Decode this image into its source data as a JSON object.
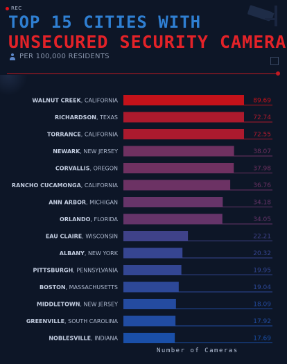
{
  "header": {
    "rec_label": "REC",
    "title_line1": "TOP 15 CITIES WITH",
    "title_line2": "UNSECURED SECURITY CAMERAS",
    "subtitle": "PER 100,000 RESIDENTS"
  },
  "colors": {
    "background": "#0d1627",
    "title_blue": "#2f7fd2",
    "title_red": "#e32228",
    "bar_high": "#c4121a",
    "bar_low": "#1a4fa8"
  },
  "icons": {
    "rec": "rec-dot-icon",
    "camera": "security-camera-icon",
    "person": "person-icon",
    "expand": "expand-icon"
  },
  "chart_data": {
    "type": "bar",
    "orientation": "horizontal",
    "title": "TOP 15 CITIES WITH UNSECURED SECURITY CAMERAS",
    "subtitle": "PER 100,000 RESIDENTS",
    "xlabel": "Number of Cameras",
    "ylabel": "",
    "xlim": [
      0,
      100
    ],
    "grid": false,
    "categories": [
      {
        "city": "WALNUT CREEK",
        "state": "CALIFORNIA"
      },
      {
        "city": "RICHARDSON",
        "state": "TEXAS"
      },
      {
        "city": "TORRANCE",
        "state": "CALIFORNIA"
      },
      {
        "city": "NEWARK",
        "state": "NEW JERSEY"
      },
      {
        "city": "CORVALLIS",
        "state": "OREGON"
      },
      {
        "city": "RANCHO CUCAMONGA",
        "state": "CALIFORNIA"
      },
      {
        "city": "ANN ARBOR",
        "state": "MICHIGAN"
      },
      {
        "city": "ORLANDO",
        "state": "FLORIDA"
      },
      {
        "city": "EAU CLAIRE",
        "state": "WISCONSIN"
      },
      {
        "city": "ALBANY",
        "state": "NEW YORK"
      },
      {
        "city": "PITTSBURGH",
        "state": "PENNSYLVANIA"
      },
      {
        "city": "BOSTON",
        "state": "MASSACHUSETTS"
      },
      {
        "city": "MIDDLETOWN",
        "state": "NEW JERSEY"
      },
      {
        "city": "GREENVILLE",
        "state": "SOUTH CAROLINA"
      },
      {
        "city": "NOBLESVILLE",
        "state": "INDIANA"
      }
    ],
    "values": [
      89.69,
      72.74,
      72.55,
      38.07,
      37.98,
      36.76,
      34.18,
      34.05,
      22.21,
      20.32,
      19.95,
      19.04,
      18.09,
      17.92,
      17.69
    ],
    "value_labels": [
      "89.69",
      "72.74",
      "72.55",
      "38.07",
      "37.98",
      "36.76",
      "34.18",
      "34.05",
      "22.21",
      "20.32",
      "19.95",
      "19.04",
      "18.09",
      "17.92",
      "17.69"
    ]
  }
}
